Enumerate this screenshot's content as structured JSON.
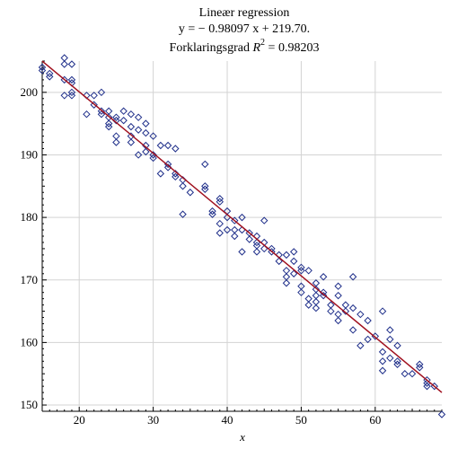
{
  "chart_data": {
    "type": "scatter",
    "title_line1": "Lineær regression",
    "title_line2": "y = − 0.98097 x + 219.70.",
    "title_line3_prefix": "Forklaringsgrad ",
    "title_line3_r": "R",
    "title_line3_exp": "2",
    "title_line3_suffix": " = 0.98203",
    "xlabel": "x",
    "ylabel": "",
    "xlim": [
      15,
      69
    ],
    "ylim": [
      149,
      205
    ],
    "xticks": [
      20,
      30,
      40,
      50,
      60
    ],
    "yticks": [
      150,
      160,
      170,
      180,
      190,
      200
    ],
    "grid": true,
    "colors": {
      "points": "#1f2f8a",
      "line": "#a0101e",
      "grid": "#d3d3d3"
    },
    "regression": {
      "slope": -0.98097,
      "intercept": 219.7
    },
    "points": [
      {
        "x": 15,
        "y": 203.5
      },
      {
        "x": 15,
        "y": 204
      },
      {
        "x": 16,
        "y": 203
      },
      {
        "x": 16,
        "y": 202.5
      },
      {
        "x": 18,
        "y": 205.5
      },
      {
        "x": 18,
        "y": 204.5
      },
      {
        "x": 18,
        "y": 202
      },
      {
        "x": 18,
        "y": 199.5
      },
      {
        "x": 19,
        "y": 204.5
      },
      {
        "x": 19,
        "y": 202
      },
      {
        "x": 19,
        "y": 201.5
      },
      {
        "x": 19,
        "y": 199.5
      },
      {
        "x": 19,
        "y": 200
      },
      {
        "x": 21,
        "y": 199.5
      },
      {
        "x": 21,
        "y": 196.5
      },
      {
        "x": 22,
        "y": 199.5
      },
      {
        "x": 22,
        "y": 198
      },
      {
        "x": 23,
        "y": 200
      },
      {
        "x": 23,
        "y": 197
      },
      {
        "x": 23,
        "y": 196.5
      },
      {
        "x": 24,
        "y": 196
      },
      {
        "x": 24,
        "y": 195
      },
      {
        "x": 24,
        "y": 194.5
      },
      {
        "x": 24,
        "y": 197
      },
      {
        "x": 25,
        "y": 195.5
      },
      {
        "x": 25,
        "y": 193
      },
      {
        "x": 25,
        "y": 192
      },
      {
        "x": 25,
        "y": 196
      },
      {
        "x": 26,
        "y": 197
      },
      {
        "x": 26,
        "y": 195.5
      },
      {
        "x": 27,
        "y": 196.5
      },
      {
        "x": 27,
        "y": 194.5
      },
      {
        "x": 27,
        "y": 193
      },
      {
        "x": 27,
        "y": 192
      },
      {
        "x": 28,
        "y": 196
      },
      {
        "x": 28,
        "y": 194
      },
      {
        "x": 28,
        "y": 190
      },
      {
        "x": 29,
        "y": 195
      },
      {
        "x": 29,
        "y": 193.5
      },
      {
        "x": 29,
        "y": 191.5
      },
      {
        "x": 29,
        "y": 190.5
      },
      {
        "x": 30,
        "y": 193
      },
      {
        "x": 30,
        "y": 190
      },
      {
        "x": 30,
        "y": 189.5
      },
      {
        "x": 31,
        "y": 191.5
      },
      {
        "x": 31,
        "y": 187
      },
      {
        "x": 32,
        "y": 191.5
      },
      {
        "x": 32,
        "y": 188
      },
      {
        "x": 32,
        "y": 188.5
      },
      {
        "x": 33,
        "y": 191
      },
      {
        "x": 33,
        "y": 187
      },
      {
        "x": 33,
        "y": 186.5
      },
      {
        "x": 34,
        "y": 186
      },
      {
        "x": 34,
        "y": 185
      },
      {
        "x": 34,
        "y": 180.5
      },
      {
        "x": 35,
        "y": 184
      },
      {
        "x": 37,
        "y": 188.5
      },
      {
        "x": 37,
        "y": 185
      },
      {
        "x": 37,
        "y": 184.5
      },
      {
        "x": 38,
        "y": 181
      },
      {
        "x": 38,
        "y": 180.5
      },
      {
        "x": 39,
        "y": 183
      },
      {
        "x": 39,
        "y": 182.5
      },
      {
        "x": 39,
        "y": 179
      },
      {
        "x": 39,
        "y": 177.5
      },
      {
        "x": 40,
        "y": 181
      },
      {
        "x": 40,
        "y": 180
      },
      {
        "x": 40,
        "y": 178
      },
      {
        "x": 41,
        "y": 179.5
      },
      {
        "x": 41,
        "y": 178
      },
      {
        "x": 41,
        "y": 177
      },
      {
        "x": 42,
        "y": 180
      },
      {
        "x": 42,
        "y": 178
      },
      {
        "x": 42,
        "y": 174.5
      },
      {
        "x": 43,
        "y": 177.5
      },
      {
        "x": 43,
        "y": 176.5
      },
      {
        "x": 44,
        "y": 177
      },
      {
        "x": 44,
        "y": 176
      },
      {
        "x": 44,
        "y": 175.5
      },
      {
        "x": 44,
        "y": 174.5
      },
      {
        "x": 45,
        "y": 179.5
      },
      {
        "x": 45,
        "y": 176
      },
      {
        "x": 45,
        "y": 175
      },
      {
        "x": 46,
        "y": 175
      },
      {
        "x": 46,
        "y": 174.5
      },
      {
        "x": 47,
        "y": 174
      },
      {
        "x": 47,
        "y": 173
      },
      {
        "x": 48,
        "y": 174
      },
      {
        "x": 48,
        "y": 171.5
      },
      {
        "x": 48,
        "y": 170.5
      },
      {
        "x": 48,
        "y": 169.5
      },
      {
        "x": 49,
        "y": 174.5
      },
      {
        "x": 49,
        "y": 173
      },
      {
        "x": 49,
        "y": 171
      },
      {
        "x": 50,
        "y": 172
      },
      {
        "x": 50,
        "y": 171.5
      },
      {
        "x": 50,
        "y": 169
      },
      {
        "x": 50,
        "y": 168
      },
      {
        "x": 51,
        "y": 171.5
      },
      {
        "x": 51,
        "y": 167
      },
      {
        "x": 51,
        "y": 166
      },
      {
        "x": 52,
        "y": 169.5
      },
      {
        "x": 52,
        "y": 168.5
      },
      {
        "x": 52,
        "y": 167.5
      },
      {
        "x": 52,
        "y": 166.5
      },
      {
        "x": 52,
        "y": 165.5
      },
      {
        "x": 53,
        "y": 170.5
      },
      {
        "x": 53,
        "y": 168
      },
      {
        "x": 53,
        "y": 167.5
      },
      {
        "x": 54,
        "y": 166
      },
      {
        "x": 54,
        "y": 165
      },
      {
        "x": 55,
        "y": 169
      },
      {
        "x": 55,
        "y": 167.5
      },
      {
        "x": 55,
        "y": 164.5
      },
      {
        "x": 55,
        "y": 163.5
      },
      {
        "x": 56,
        "y": 166
      },
      {
        "x": 56,
        "y": 165
      },
      {
        "x": 57,
        "y": 170.5
      },
      {
        "x": 57,
        "y": 165.5
      },
      {
        "x": 57,
        "y": 162
      },
      {
        "x": 58,
        "y": 164.5
      },
      {
        "x": 58,
        "y": 159.5
      },
      {
        "x": 59,
        "y": 163.5
      },
      {
        "x": 59,
        "y": 160.5
      },
      {
        "x": 60,
        "y": 161
      },
      {
        "x": 61,
        "y": 165
      },
      {
        "x": 61,
        "y": 158.5
      },
      {
        "x": 61,
        "y": 157
      },
      {
        "x": 61,
        "y": 155.5
      },
      {
        "x": 62,
        "y": 162
      },
      {
        "x": 62,
        "y": 160.5
      },
      {
        "x": 62,
        "y": 157.5
      },
      {
        "x": 63,
        "y": 159.5
      },
      {
        "x": 63,
        "y": 157
      },
      {
        "x": 63,
        "y": 156.5
      },
      {
        "x": 64,
        "y": 155
      },
      {
        "x": 65,
        "y": 155
      },
      {
        "x": 66,
        "y": 156.5
      },
      {
        "x": 66,
        "y": 156
      },
      {
        "x": 67,
        "y": 154
      },
      {
        "x": 67,
        "y": 153.5
      },
      {
        "x": 67,
        "y": 153
      },
      {
        "x": 68,
        "y": 153
      },
      {
        "x": 69,
        "y": 148.5
      }
    ]
  }
}
